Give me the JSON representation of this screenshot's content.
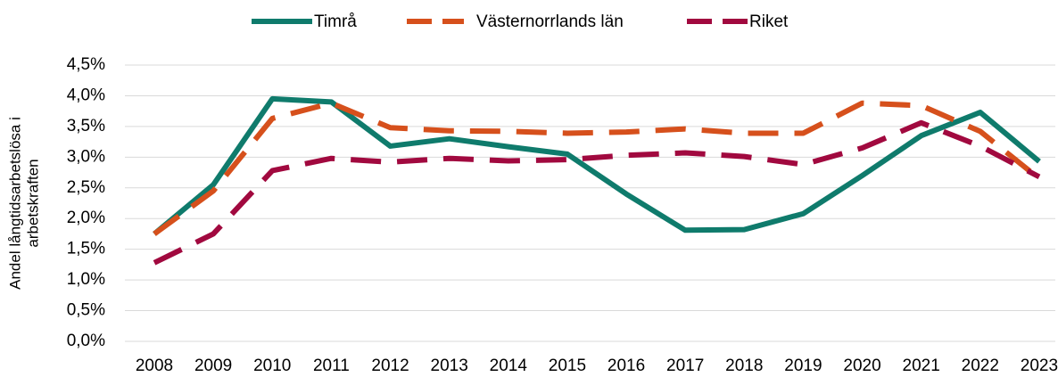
{
  "chart_data": {
    "type": "line",
    "ylabel": [
      "Andel långtidsarbetslösa i",
      "arbetskraften"
    ],
    "categories": [
      "2008",
      "2009",
      "2010",
      "2011",
      "2012",
      "2013",
      "2014",
      "2015",
      "2016",
      "2017",
      "2018",
      "2019",
      "2020",
      "2021",
      "2022",
      "2023"
    ],
    "series": [
      {
        "name": "Timrå",
        "color": "#0f7b6c",
        "dash": "solid",
        "values": [
          1.75,
          2.55,
          3.95,
          3.9,
          3.18,
          3.3,
          3.17,
          3.05,
          2.4,
          1.81,
          1.82,
          2.08,
          2.7,
          3.35,
          3.73,
          2.93
        ]
      },
      {
        "name": "Västernorrlands län",
        "color": "#d6501c",
        "dash": "dashed",
        "values": [
          1.75,
          2.45,
          3.63,
          3.88,
          3.48,
          3.43,
          3.42,
          3.39,
          3.41,
          3.46,
          3.39,
          3.39,
          3.88,
          3.84,
          3.42,
          2.65
        ]
      },
      {
        "name": "Riket",
        "color": "#a1093f",
        "dash": "dashed",
        "values": [
          1.28,
          1.75,
          2.78,
          2.98,
          2.92,
          2.98,
          2.94,
          2.96,
          3.03,
          3.07,
          3.01,
          2.88,
          3.15,
          3.56,
          3.18,
          2.68
        ]
      }
    ],
    "ylim": [
      0,
      4.5
    ],
    "yticks": [
      {
        "value": 0,
        "label": "0,0%"
      },
      {
        "value": 0.5,
        "label": "0,5%"
      },
      {
        "value": 1,
        "label": "1,0%"
      },
      {
        "value": 1.5,
        "label": "1,5%"
      },
      {
        "value": 2,
        "label": "2,0%"
      },
      {
        "value": 2.5,
        "label": "2,5%"
      },
      {
        "value": 3,
        "label": "3,0%"
      },
      {
        "value": 3.5,
        "label": "3,5%"
      },
      {
        "value": 4,
        "label": "4,0%"
      },
      {
        "value": 4.5,
        "label": "4,5%"
      }
    ],
    "grid": true,
    "legend": "top"
  }
}
